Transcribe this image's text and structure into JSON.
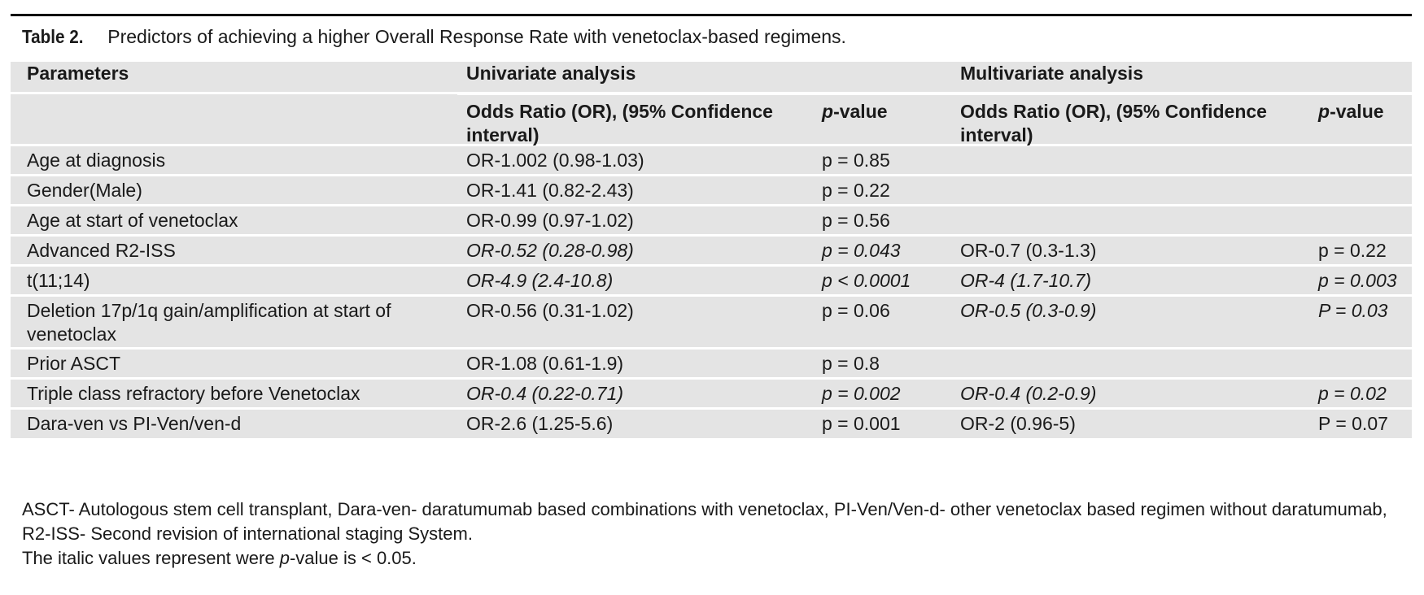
{
  "caption": {
    "label": "Table 2.",
    "title": "Predictors of achieving a higher Overall Response Rate with venetoclax-based regimens."
  },
  "header": {
    "parameters": "Parameters",
    "univariate": "Univariate analysis",
    "multivariate": "Multivariate analysis",
    "or_ci": "Odds Ratio (OR), (95% Confidence interval)",
    "p_value_p": "p",
    "p_value_rest": "-value"
  },
  "rows": [
    {
      "param": "Age at diagnosis",
      "uni_or": "OR-1.002 (0.98-1.03)",
      "uni_p": "p = 0.85",
      "multi_or": "",
      "multi_p": ""
    },
    {
      "param": "Gender(Male)",
      "uni_or": "OR-1.41 (0.82-2.43)",
      "uni_p": "p = 0.22",
      "multi_or": "",
      "multi_p": ""
    },
    {
      "param": "Age at start of venetoclax",
      "uni_or": "OR-0.99 (0.97-1.02)",
      "uni_p": "p = 0.56",
      "multi_or": "",
      "multi_p": ""
    },
    {
      "param": "Advanced R2-ISS",
      "uni_or": "OR-0.52 (0.28-0.98)",
      "uni_p": "p = 0.043",
      "multi_or": "OR-0.7 (0.3-1.3)",
      "multi_p": "p = 0.22"
    },
    {
      "param": "t(11;14)",
      "uni_or": "OR-4.9 (2.4-10.8)",
      "uni_p": "p < 0.0001",
      "multi_or": "OR-4 (1.7-10.7)",
      "multi_p": "p = 0.003"
    },
    {
      "param": "Deletion 17p/1q gain/amplification at start of venetoclax",
      "uni_or": "OR-0.56 (0.31-1.02)",
      "uni_p": "p = 0.06",
      "multi_or": "OR-0.5 (0.3-0.9)",
      "multi_p": "P = 0.03"
    },
    {
      "param": "Prior ASCT",
      "uni_or": "OR-1.08 (0.61-1.9)",
      "uni_p": "p = 0.8",
      "multi_or": "",
      "multi_p": ""
    },
    {
      "param": "Triple class refractory before Venetoclax",
      "uni_or": "OR-0.4 (0.22-0.71)",
      "uni_p": "p = 0.002",
      "multi_or": "OR-0.4 (0.2-0.9)",
      "multi_p": "p = 0.02"
    },
    {
      "param": "Dara-ven vs PI-Ven/ven-d",
      "uni_or": "OR-2.6 (1.25-5.6)",
      "uni_p": "p = 0.001",
      "multi_or": "OR-2 (0.96-5)",
      "multi_p": "P = 0.07"
    }
  ],
  "footnote": {
    "abbrev": "ASCT- Autologous stem cell transplant, Dara-ven- daratumumab based combinations with venetoclax, PI-Ven/Ven-d- other venetoclax based regimen without daratumumab, R2-ISS- Second revision of international staging System.",
    "italic_note_start": "The italic values represent were ",
    "italic_note_p": "p",
    "italic_note_end": "-value is < 0.05."
  }
}
